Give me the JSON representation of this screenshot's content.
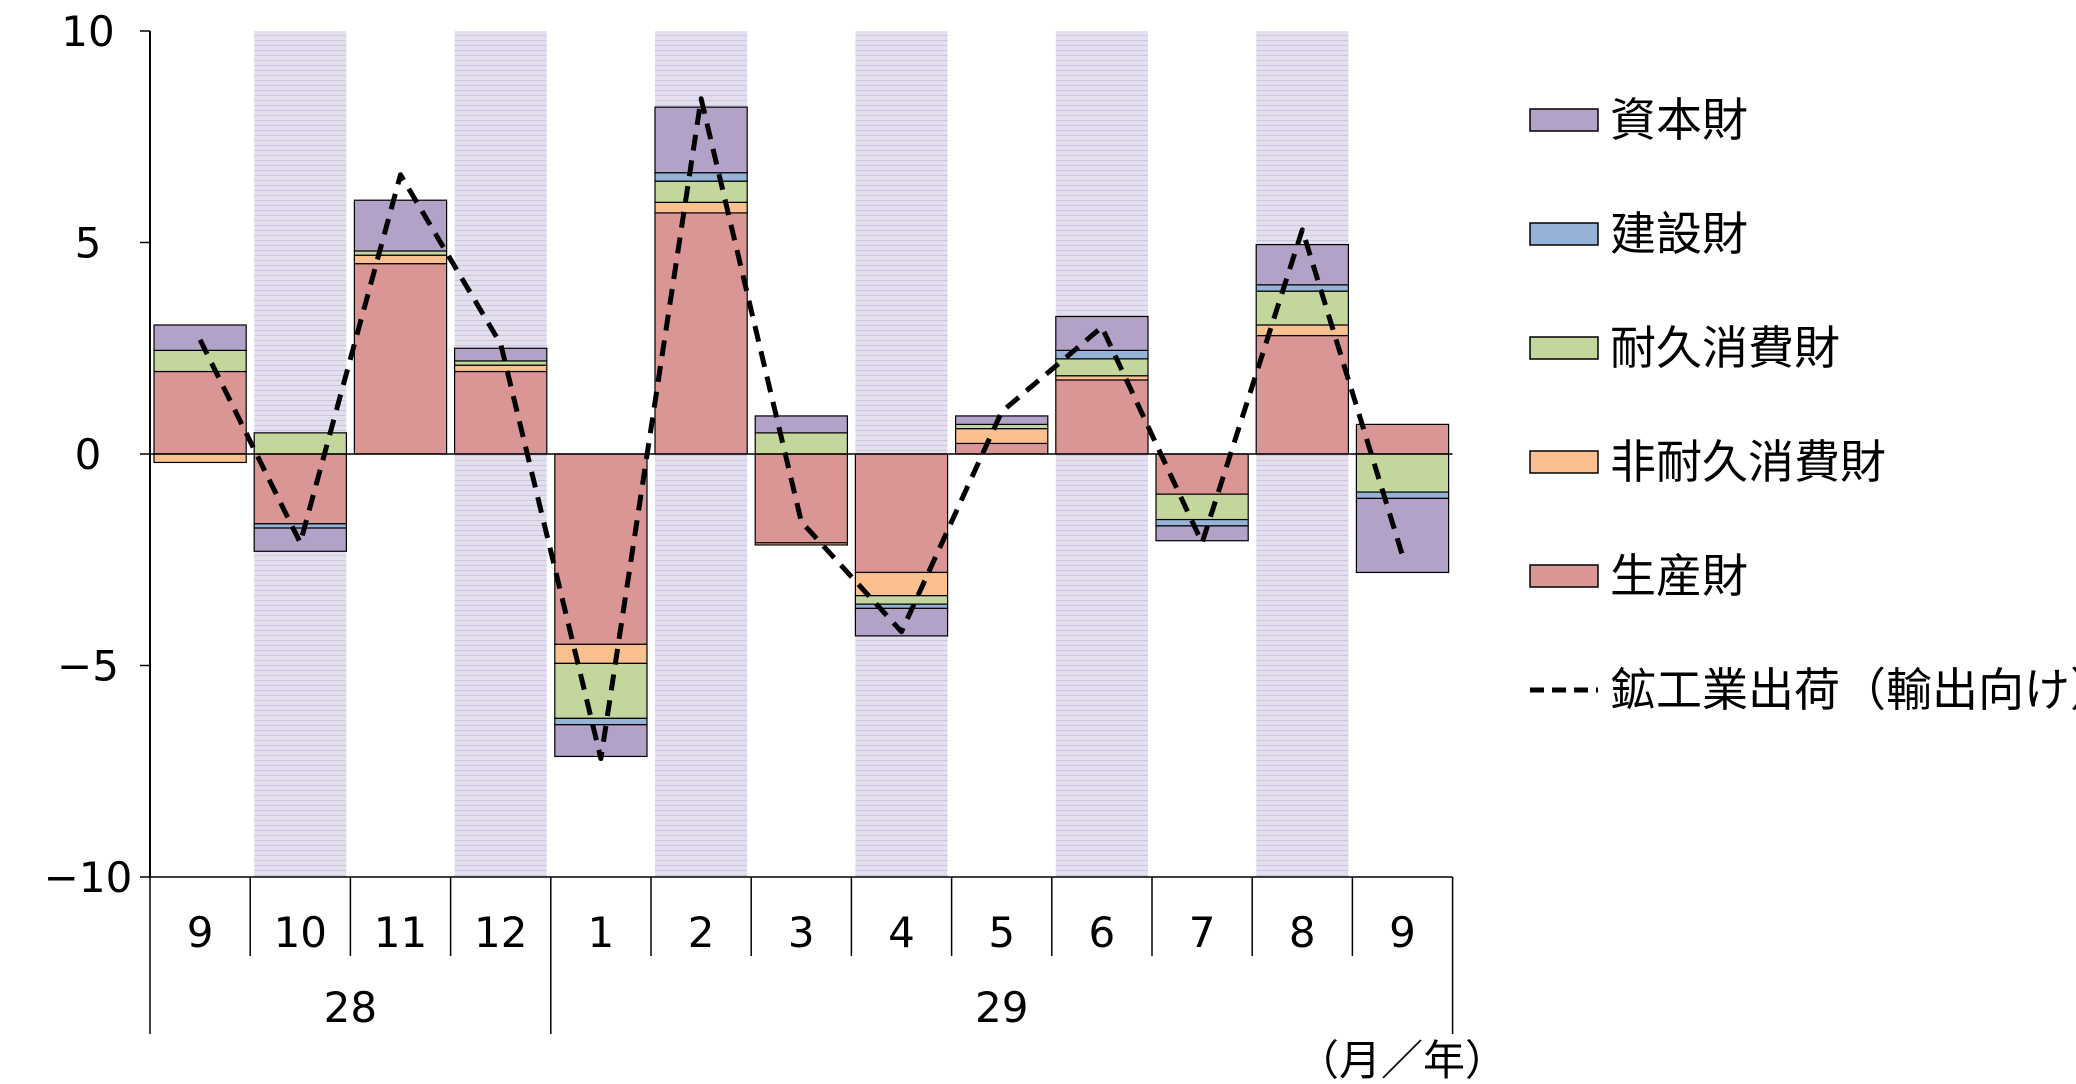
{
  "chart_data": {
    "type": "bar",
    "stacked": true,
    "ylim": [
      -10,
      10
    ],
    "yticks": [
      10,
      5,
      0,
      -5,
      -10
    ],
    "ytick_labels": [
      "10",
      "5",
      "0",
      "−5",
      "−10"
    ],
    "categories": [
      "9",
      "10",
      "11",
      "12",
      "1",
      "2",
      "3",
      "4",
      "5",
      "6",
      "7",
      "8",
      "9"
    ],
    "year_groups": [
      {
        "label": "28",
        "start": 0,
        "end": 3
      },
      {
        "label": "29",
        "start": 4,
        "end": 12
      }
    ],
    "shaded_columns": [
      1,
      3,
      5,
      7,
      9,
      11
    ],
    "unit_label": "（月／年）",
    "series": [
      {
        "name": "生産財",
        "color": "#d99694",
        "values": [
          1.95,
          -1.65,
          4.5,
          1.95,
          -4.5,
          5.7,
          -2.1,
          -2.8,
          0.25,
          1.75,
          -0.95,
          2.8,
          0.7
        ]
      },
      {
        "name": "非耐久消費財",
        "color": "#fac090",
        "values": [
          -0.2,
          0.0,
          0.2,
          0.15,
          -0.45,
          0.25,
          -0.05,
          -0.55,
          0.35,
          0.1,
          0.0,
          0.25,
          0.0
        ]
      },
      {
        "name": "耐久消費財",
        "color": "#c3d69b",
        "values": [
          0.5,
          0.5,
          0.1,
          0.1,
          -1.3,
          0.5,
          0.5,
          -0.2,
          0.1,
          0.4,
          -0.6,
          0.8,
          -0.9
        ]
      },
      {
        "name": "建設財",
        "color": "#95b3d7",
        "values": [
          0.0,
          -0.1,
          0.0,
          0.0,
          -0.15,
          0.2,
          0.0,
          -0.1,
          0.0,
          0.2,
          -0.15,
          0.15,
          -0.15
        ]
      },
      {
        "name": "資本財",
        "color": "#b3a2c7",
        "values": [
          0.6,
          -0.55,
          1.2,
          0.3,
          -0.75,
          1.55,
          0.4,
          -0.65,
          0.2,
          0.8,
          -0.35,
          0.95,
          -1.75
        ]
      }
    ],
    "line": {
      "name": "鉱工業出荷（輸出向け）",
      "style": "dashed",
      "color": "#000000",
      "values": [
        2.7,
        -2.1,
        6.6,
        2.6,
        -7.2,
        8.4,
        -1.6,
        -4.2,
        1.0,
        3.0,
        -2.1,
        5.3,
        -2.4
      ]
    },
    "legend": {
      "position": "right",
      "items": [
        {
          "label": "資本財",
          "color": "#b3a2c7",
          "kind": "box"
        },
        {
          "label": "建設財",
          "color": "#95b3d7",
          "kind": "box"
        },
        {
          "label": "耐久消費財",
          "color": "#c3d69b",
          "kind": "box"
        },
        {
          "label": "非耐久消費財",
          "color": "#fac090",
          "kind": "box"
        },
        {
          "label": "生産財",
          "color": "#d99694",
          "kind": "box"
        },
        {
          "label": "鉱工業出荷（輸出向け）",
          "color": "#000000",
          "kind": "dashed-line"
        }
      ]
    },
    "colors": {
      "shade": "#e4dfee",
      "shade_line": "#cdc6dc",
      "axis": "#000000"
    }
  }
}
